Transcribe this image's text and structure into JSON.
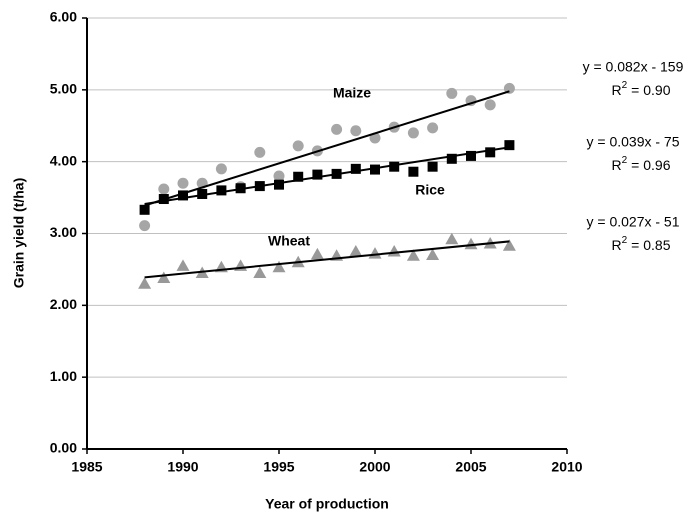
{
  "chart_data": {
    "type": "scatter",
    "x_label": "Year of production",
    "y_label": "Grain yield (t/ha)",
    "xlim": [
      1985,
      2010
    ],
    "xticks": [
      1985,
      1990,
      1995,
      2000,
      2005,
      2010
    ],
    "ylim": [
      0,
      6
    ],
    "yticks": [
      {
        "value": 0,
        "label": "0.00"
      },
      {
        "value": 1,
        "label": "1.00"
      },
      {
        "value": 2,
        "label": "2.00"
      },
      {
        "value": 3,
        "label": "3.00"
      },
      {
        "value": 4,
        "label": "4.00"
      },
      {
        "value": 5,
        "label": "5.00"
      },
      {
        "value": 6,
        "label": "6.00"
      }
    ],
    "grid": true,
    "x": [
      1988,
      1989,
      1990,
      1991,
      1992,
      1993,
      1994,
      1995,
      1996,
      1997,
      1998,
      1999,
      2000,
      2001,
      2002,
      2003,
      2004,
      2005,
      2006,
      2007
    ],
    "series": [
      {
        "name": "Maize",
        "color": "#a6a6a6",
        "marker": "circle",
        "values": [
          3.11,
          3.62,
          3.7,
          3.7,
          3.9,
          3.65,
          4.13,
          3.8,
          4.22,
          4.15,
          4.45,
          4.43,
          4.33,
          4.48,
          4.4,
          4.47,
          4.95,
          4.85,
          4.79,
          5.02
        ],
        "trend": {
          "x": [
            1988,
            2007
          ],
          "y": [
            3.39,
            4.98
          ]
        },
        "equation": {
          "formula": "y = 0.082x - 159",
          "r2_symbol": "R",
          "r2_exponent": "2",
          "r2_value": "= 0.90"
        }
      },
      {
        "name": "Rice",
        "color": "#000000",
        "marker": "square",
        "values": [
          3.33,
          3.48,
          3.53,
          3.55,
          3.6,
          3.63,
          3.66,
          3.68,
          3.79,
          3.82,
          3.83,
          3.9,
          3.89,
          3.93,
          3.86,
          3.93,
          4.04,
          4.08,
          4.13,
          4.23
        ],
        "trend": {
          "x": [
            1988,
            2007
          ],
          "y": [
            3.41,
            4.2
          ]
        },
        "equation": {
          "formula": "y = 0.039x - 75",
          "r2_symbol": "R",
          "r2_exponent": "2",
          "r2_value": "= 0.96"
        }
      },
      {
        "name": "Wheat",
        "color": "#999999",
        "marker": "triangle",
        "values": [
          2.3,
          2.38,
          2.55,
          2.45,
          2.53,
          2.55,
          2.45,
          2.53,
          2.6,
          2.71,
          2.69,
          2.75,
          2.72,
          2.75,
          2.69,
          2.7,
          2.92,
          2.85,
          2.86,
          2.83
        ],
        "trend": {
          "x": [
            1988,
            2007
          ],
          "y": [
            2.39,
            2.89
          ]
        },
        "equation": {
          "formula": "y = 0.027x - 51",
          "r2_symbol": "R",
          "r2_exponent": "2",
          "r2_value": "= 0.85"
        }
      }
    ]
  }
}
